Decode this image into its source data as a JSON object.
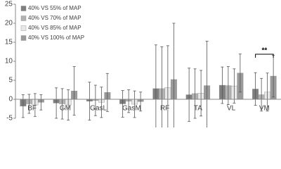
{
  "chart_data": {
    "type": "bar",
    "categories": [
      "BF",
      "GM",
      "GasL",
      "GasM",
      "RF",
      "TA",
      "VL",
      "VM"
    ],
    "series": [
      {
        "name": "40% VS 55% of MAP",
        "color": "#7f7f7f",
        "values": [
          -1.8,
          -1.0,
          -0.5,
          -1.2,
          2.8,
          1.2,
          3.7,
          2.7
        ],
        "errors": [
          3.0,
          4.0,
          5.0,
          3.5,
          11.5,
          7.0,
          4.8,
          4.3
        ]
      },
      {
        "name": "40% VS 70% of MAP",
        "color": "#b2b2b2",
        "values": [
          -1.2,
          -1.2,
          -0.3,
          -0.5,
          2.8,
          1.5,
          3.6,
          1.2
        ],
        "errors": [
          2.5,
          4.0,
          4.0,
          3.0,
          11.0,
          6.5,
          5.0,
          4.3
        ]
      },
      {
        "name": "40% VS 85% of MAP",
        "color": "#e8e8e8",
        "values": [
          -1.5,
          -1.5,
          -0.8,
          -1.3,
          3.1,
          1.6,
          3.5,
          1.9
        ],
        "errors": [
          3.0,
          4.0,
          4.0,
          3.5,
          11.0,
          6.0,
          4.5,
          5.0
        ]
      },
      {
        "name": "40% VS 100% of MAP",
        "color": "#9a9a9a",
        "values": [
          -0.8,
          2.2,
          1.8,
          -0.6,
          5.2,
          3.6,
          6.9,
          6.1
        ],
        "errors": [
          2.0,
          6.4,
          5.0,
          2.5,
          14.8,
          11.7,
          5.0,
          5.5
        ]
      }
    ],
    "ylim": [
      -5,
      25
    ],
    "yticks": [
      -5,
      0,
      5,
      10,
      15,
      20,
      25
    ],
    "annotation": "**",
    "legend": "top-left"
  }
}
